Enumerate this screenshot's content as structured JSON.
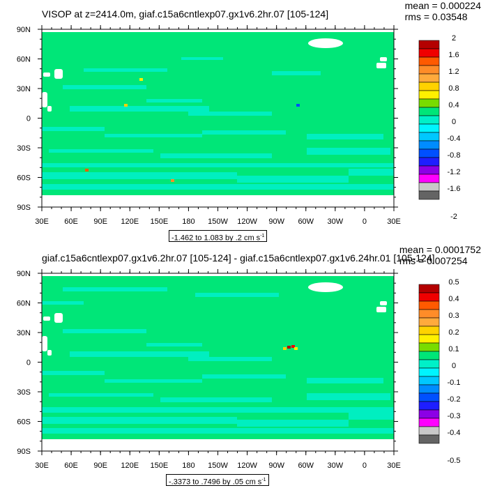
{
  "chart_data": [
    {
      "type": "heatmap",
      "title": "VISOP at z=2414.0m, giaf.c15a6cntlexp07.gx1v6.2hr.07 [105-124]",
      "mean_text": "mean = 0.000224",
      "rms_text": "rms = 0.03548",
      "range_text": "-1.462 to 1.083 by .2 cm s",
      "range_sup": "-1",
      "x_ticks": [
        "30E",
        "60E",
        "90E",
        "120E",
        "150E",
        "180",
        "150W",
        "120W",
        "90W",
        "60W",
        "30W",
        "0",
        "30E"
      ],
      "y_ticks": [
        "90N",
        "60N",
        "30N",
        "0",
        "30S",
        "60S",
        "90S"
      ],
      "levels": [
        "2",
        "1.6",
        "1.2",
        "0.8",
        "0.4",
        "0",
        "-0.4",
        "-0.8",
        "-1.2",
        "-1.6",
        "-2"
      ],
      "colors": [
        "#b40000",
        "#f00000",
        "#ff5a00",
        "#ff8c28",
        "#ffaa3c",
        "#ffd200",
        "#fff000",
        "#78dc00",
        "#00e678",
        "#00f0c8",
        "#00f5ff",
        "#00c8ff",
        "#008cff",
        "#0050ff",
        "#1e1eff",
        "#8c00e6",
        "#ff00ff",
        "#c8c8c8",
        "#646464"
      ],
      "background_color": "#00e678",
      "secondary_color": "#00f0c8"
    },
    {
      "type": "heatmap",
      "title": "giaf.c15a6cntlexp07.gx1v6.2hr.07 [105-124] - giaf.c15a6cntlexp07.gx1v6.24hr.01 [105-124]",
      "mean_text": "mean = 0.0001752",
      "rms_text": "rms = 0.007254",
      "range_text": "-.3373 to .7496 by .05 cm s",
      "range_sup": "-1",
      "x_ticks": [
        "30E",
        "60E",
        "90E",
        "120E",
        "150E",
        "180",
        "150W",
        "120W",
        "90W",
        "60W",
        "30W",
        "0",
        "30E"
      ],
      "y_ticks": [
        "90N",
        "60N",
        "30N",
        "0",
        "30S",
        "60S",
        "90S"
      ],
      "levels": [
        "0.5",
        "0.4",
        "0.3",
        "0.2",
        "0.1",
        "0",
        "-0.1",
        "-0.2",
        "-0.3",
        "-0.4",
        "-0.5"
      ],
      "colors": [
        "#b40000",
        "#f00000",
        "#ff5a00",
        "#ff8c28",
        "#ffaa3c",
        "#ffd200",
        "#fff000",
        "#78dc00",
        "#00e678",
        "#00f0c8",
        "#00f5ff",
        "#00c8ff",
        "#008cff",
        "#0050ff",
        "#1e1eff",
        "#8c00e6",
        "#ff00ff",
        "#c8c8c8",
        "#646464"
      ],
      "background_color": "#00e678",
      "secondary_color": "#00f0c8"
    }
  ]
}
